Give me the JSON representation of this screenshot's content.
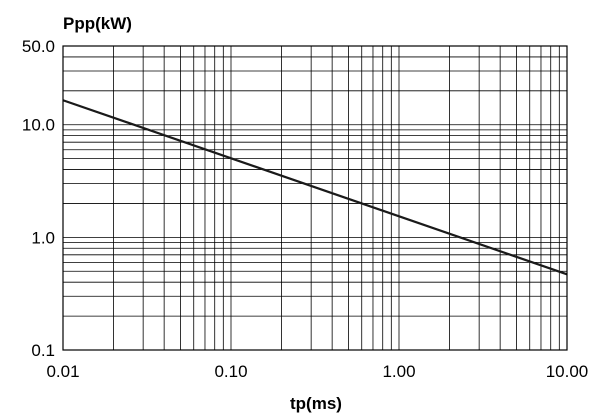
{
  "chart_data": {
    "type": "line",
    "ylabel": "Ppp(kW)",
    "xlabel": "tp(ms)",
    "x_scale": "log",
    "y_scale": "log",
    "xlim": [
      0.01,
      10
    ],
    "ylim": [
      0.1,
      50
    ],
    "grid": true,
    "x_ticks": [
      {
        "value": 0.01,
        "label": "0.01"
      },
      {
        "value": 0.1,
        "label": "0.10"
      },
      {
        "value": 1,
        "label": "1.00"
      },
      {
        "value": 10,
        "label": "10.00"
      }
    ],
    "y_ticks": [
      {
        "value": 0.1,
        "label": "0.1"
      },
      {
        "value": 1,
        "label": "1.0"
      },
      {
        "value": 10,
        "label": "10.0"
      },
      {
        "value": 50,
        "label": "50.0"
      }
    ],
    "series": [
      {
        "color": "#1a1a1a",
        "x": [
          0.01,
          10
        ],
        "y": [
          16.5,
          0.47
        ]
      }
    ]
  }
}
